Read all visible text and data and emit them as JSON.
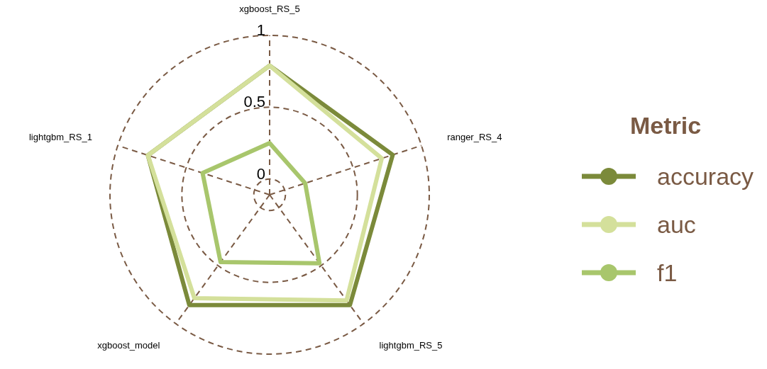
{
  "chart_data": {
    "type": "radar",
    "legend_title": "Metric",
    "categories": [
      "xgboost_RS_5",
      "ranger_RS_4",
      "lightgbm_RS_5",
      "xgboost_model",
      "lightgbm_RS_1"
    ],
    "series": [
      {
        "name": "accuracy",
        "color": "#7b8a3a",
        "values": [
          0.79,
          0.79,
          0.84,
          0.84,
          0.78
        ]
      },
      {
        "name": "auc",
        "color": "#d4e09b",
        "values": [
          0.79,
          0.71,
          0.8,
          0.78,
          0.78
        ]
      },
      {
        "name": "f1",
        "color": "#a8c66c",
        "values": [
          0.25,
          0.15,
          0.48,
          0.47,
          0.38
        ]
      }
    ],
    "ylim": [
      -0.11,
      1
    ],
    "yticks": [
      0,
      0.5,
      1
    ],
    "grid": true,
    "legend": "right",
    "marker": "circle",
    "line_style": "solid"
  }
}
